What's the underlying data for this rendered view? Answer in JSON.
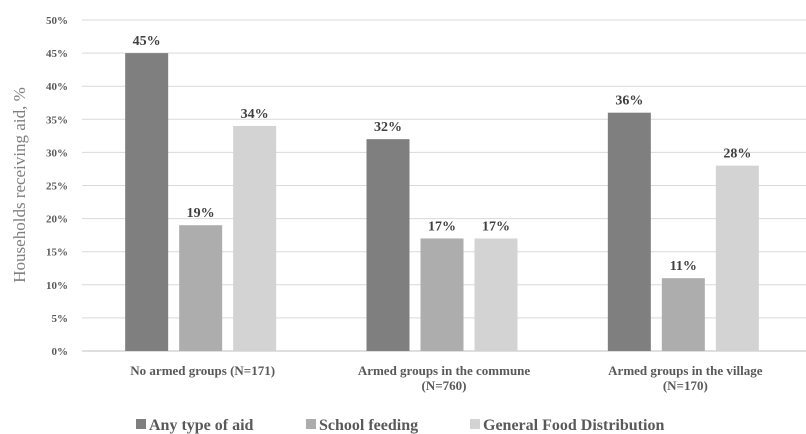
{
  "chart_data": {
    "type": "bar",
    "title": "",
    "xlabel": "",
    "ylabel": "Households receiving aid, %",
    "ylim": [
      0,
      50
    ],
    "yticks": [
      "0%",
      "5%",
      "10%",
      "15%",
      "20%",
      "25%",
      "30%",
      "35%",
      "40%",
      "45%",
      "50%"
    ],
    "categories": [
      [
        "No armed groups (N=171)"
      ],
      [
        "Armed groups in the commune",
        "(N=760)"
      ],
      [
        "Armed groups in the village",
        "(N=170)"
      ]
    ],
    "series": [
      {
        "name": "Any type of aid",
        "color": "#7f7f7f",
        "values": [
          45,
          32,
          36
        ],
        "labels": [
          "45%",
          "32%",
          "36%"
        ]
      },
      {
        "name": "School feeding",
        "color": "#adadad",
        "values": [
          19,
          17,
          11
        ],
        "labels": [
          "19%",
          "17%",
          "11%"
        ]
      },
      {
        "name": "General Food Distribution",
        "color": "#d3d3d3",
        "values": [
          34,
          17,
          28
        ],
        "labels": [
          "34%",
          "17%",
          "28%"
        ]
      }
    ],
    "grid": true,
    "legend": "bottom"
  }
}
